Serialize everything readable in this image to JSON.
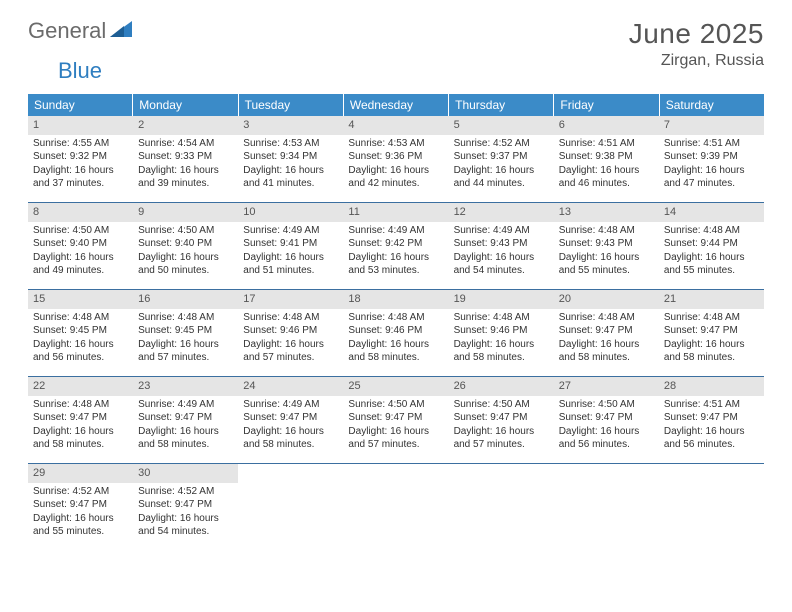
{
  "brand": {
    "part1": "General",
    "part2": "Blue"
  },
  "title": "June 2025",
  "location": "Zirgan, Russia",
  "colors": {
    "header_bg": "#3b8bc8",
    "header_text": "#ffffff",
    "daynum_bg": "#e5e5e5",
    "border": "#3b6fa0",
    "title_color": "#555555",
    "logo_gray": "#6b6b6b",
    "logo_blue": "#2f7ec0"
  },
  "weekdays": [
    "Sunday",
    "Monday",
    "Tuesday",
    "Wednesday",
    "Thursday",
    "Friday",
    "Saturday"
  ],
  "weeks": [
    [
      {
        "n": "1",
        "sr": "4:55 AM",
        "ss": "9:32 PM",
        "dl": "16 hours and 37 minutes."
      },
      {
        "n": "2",
        "sr": "4:54 AM",
        "ss": "9:33 PM",
        "dl": "16 hours and 39 minutes."
      },
      {
        "n": "3",
        "sr": "4:53 AM",
        "ss": "9:34 PM",
        "dl": "16 hours and 41 minutes."
      },
      {
        "n": "4",
        "sr": "4:53 AM",
        "ss": "9:36 PM",
        "dl": "16 hours and 42 minutes."
      },
      {
        "n": "5",
        "sr": "4:52 AM",
        "ss": "9:37 PM",
        "dl": "16 hours and 44 minutes."
      },
      {
        "n": "6",
        "sr": "4:51 AM",
        "ss": "9:38 PM",
        "dl": "16 hours and 46 minutes."
      },
      {
        "n": "7",
        "sr": "4:51 AM",
        "ss": "9:39 PM",
        "dl": "16 hours and 47 minutes."
      }
    ],
    [
      {
        "n": "8",
        "sr": "4:50 AM",
        "ss": "9:40 PM",
        "dl": "16 hours and 49 minutes."
      },
      {
        "n": "9",
        "sr": "4:50 AM",
        "ss": "9:40 PM",
        "dl": "16 hours and 50 minutes."
      },
      {
        "n": "10",
        "sr": "4:49 AM",
        "ss": "9:41 PM",
        "dl": "16 hours and 51 minutes."
      },
      {
        "n": "11",
        "sr": "4:49 AM",
        "ss": "9:42 PM",
        "dl": "16 hours and 53 minutes."
      },
      {
        "n": "12",
        "sr": "4:49 AM",
        "ss": "9:43 PM",
        "dl": "16 hours and 54 minutes."
      },
      {
        "n": "13",
        "sr": "4:48 AM",
        "ss": "9:43 PM",
        "dl": "16 hours and 55 minutes."
      },
      {
        "n": "14",
        "sr": "4:48 AM",
        "ss": "9:44 PM",
        "dl": "16 hours and 55 minutes."
      }
    ],
    [
      {
        "n": "15",
        "sr": "4:48 AM",
        "ss": "9:45 PM",
        "dl": "16 hours and 56 minutes."
      },
      {
        "n": "16",
        "sr": "4:48 AM",
        "ss": "9:45 PM",
        "dl": "16 hours and 57 minutes."
      },
      {
        "n": "17",
        "sr": "4:48 AM",
        "ss": "9:46 PM",
        "dl": "16 hours and 57 minutes."
      },
      {
        "n": "18",
        "sr": "4:48 AM",
        "ss": "9:46 PM",
        "dl": "16 hours and 58 minutes."
      },
      {
        "n": "19",
        "sr": "4:48 AM",
        "ss": "9:46 PM",
        "dl": "16 hours and 58 minutes."
      },
      {
        "n": "20",
        "sr": "4:48 AM",
        "ss": "9:47 PM",
        "dl": "16 hours and 58 minutes."
      },
      {
        "n": "21",
        "sr": "4:48 AM",
        "ss": "9:47 PM",
        "dl": "16 hours and 58 minutes."
      }
    ],
    [
      {
        "n": "22",
        "sr": "4:48 AM",
        "ss": "9:47 PM",
        "dl": "16 hours and 58 minutes."
      },
      {
        "n": "23",
        "sr": "4:49 AM",
        "ss": "9:47 PM",
        "dl": "16 hours and 58 minutes."
      },
      {
        "n": "24",
        "sr": "4:49 AM",
        "ss": "9:47 PM",
        "dl": "16 hours and 58 minutes."
      },
      {
        "n": "25",
        "sr": "4:50 AM",
        "ss": "9:47 PM",
        "dl": "16 hours and 57 minutes."
      },
      {
        "n": "26",
        "sr": "4:50 AM",
        "ss": "9:47 PM",
        "dl": "16 hours and 57 minutes."
      },
      {
        "n": "27",
        "sr": "4:50 AM",
        "ss": "9:47 PM",
        "dl": "16 hours and 56 minutes."
      },
      {
        "n": "28",
        "sr": "4:51 AM",
        "ss": "9:47 PM",
        "dl": "16 hours and 56 minutes."
      }
    ],
    [
      {
        "n": "29",
        "sr": "4:52 AM",
        "ss": "9:47 PM",
        "dl": "16 hours and 55 minutes."
      },
      {
        "n": "30",
        "sr": "4:52 AM",
        "ss": "9:47 PM",
        "dl": "16 hours and 54 minutes."
      },
      null,
      null,
      null,
      null,
      null
    ]
  ],
  "labels": {
    "sunrise": "Sunrise:",
    "sunset": "Sunset:",
    "daylight": "Daylight:"
  }
}
